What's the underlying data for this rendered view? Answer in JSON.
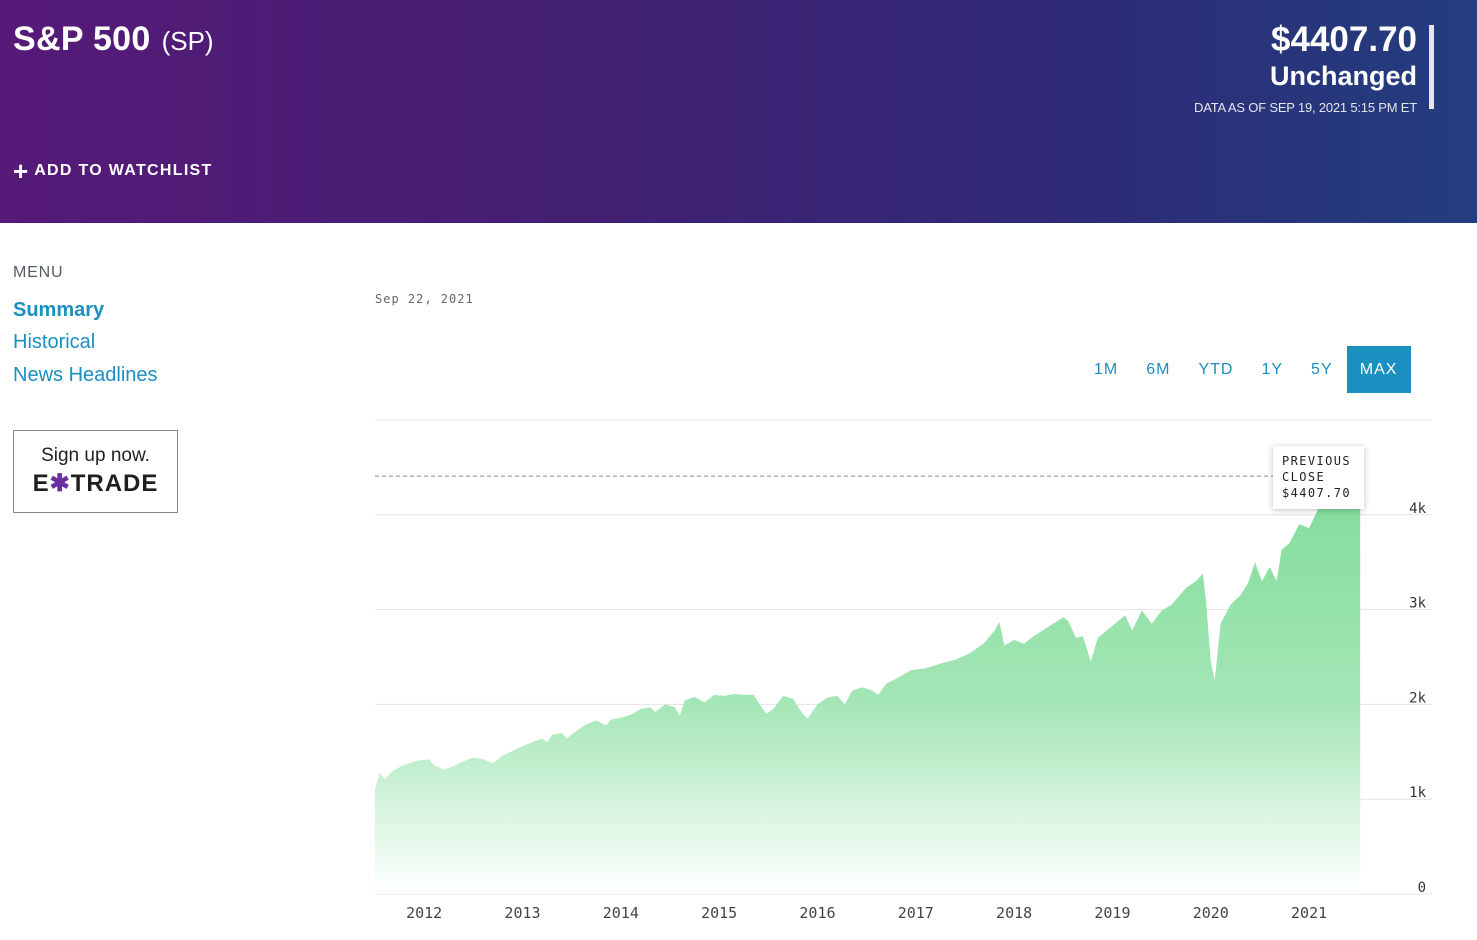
{
  "header": {
    "title": "S&P 500",
    "ticker": "(SP)",
    "price": "$4407.70",
    "change": "Unchanged",
    "as_of": "DATA AS OF SEP 19, 2021 5:15 PM ET",
    "watchlist_label": "ADD TO WATCHLIST"
  },
  "menu": {
    "label": "MENU",
    "items": [
      {
        "label": "Summary"
      },
      {
        "label": "Historical"
      },
      {
        "label": "News Headlines"
      }
    ]
  },
  "ad": {
    "line1": "Sign up now.",
    "brand_left": "E",
    "brand_x": "✱",
    "brand_right": "TRADE"
  },
  "chart_header": {
    "date": "Sep 22, 2021"
  },
  "ranges": [
    {
      "label": "1M",
      "active": false
    },
    {
      "label": "6M",
      "active": false
    },
    {
      "label": "YTD",
      "active": false
    },
    {
      "label": "1Y",
      "active": false
    },
    {
      "label": "5Y",
      "active": false
    },
    {
      "label": "MAX",
      "active": true
    }
  ],
  "tooltip": {
    "line1": "PREVIOUS",
    "line2": "CLOSE",
    "line3": "$4407.70"
  },
  "colors": {
    "accent": "#1a8fc0",
    "area_top": "#7fdc98",
    "area_bottom": "#ffffff"
  },
  "chart_data": {
    "type": "area",
    "title": "",
    "xlabel": "",
    "ylabel": "",
    "x_ticks": [
      "2012",
      "2013",
      "2014",
      "2015",
      "2016",
      "2017",
      "2018",
      "2019",
      "2020",
      "2021"
    ],
    "y_ticks": [
      {
        "value": 0,
        "label": "0"
      },
      {
        "value": 1000,
        "label": "1k"
      },
      {
        "value": 2000,
        "label": "2k"
      },
      {
        "value": 3000,
        "label": "3k"
      },
      {
        "value": 4000,
        "label": "4k"
      }
    ],
    "xlim": [
      2011.7,
      2022.45
    ],
    "ylim": [
      0,
      5000
    ],
    "grid": true,
    "reference_line": {
      "label": "PREVIOUS CLOSE",
      "value": 4407.7
    },
    "series": [
      {
        "values": [
          [
            2011.7,
            1100
          ],
          [
            2011.75,
            1280
          ],
          [
            2011.8,
            1210
          ],
          [
            2011.87,
            1290
          ],
          [
            2011.95,
            1340
          ],
          [
            2012.05,
            1380
          ],
          [
            2012.15,
            1410
          ],
          [
            2012.25,
            1420
          ],
          [
            2012.3,
            1360
          ],
          [
            2012.4,
            1310
          ],
          [
            2012.5,
            1350
          ],
          [
            2012.6,
            1400
          ],
          [
            2012.7,
            1440
          ],
          [
            2012.8,
            1420
          ],
          [
            2012.9,
            1380
          ],
          [
            2013.0,
            1460
          ],
          [
            2013.1,
            1510
          ],
          [
            2013.2,
            1560
          ],
          [
            2013.3,
            1600
          ],
          [
            2013.4,
            1640
          ],
          [
            2013.45,
            1600
          ],
          [
            2013.5,
            1680
          ],
          [
            2013.6,
            1700
          ],
          [
            2013.65,
            1640
          ],
          [
            2013.75,
            1720
          ],
          [
            2013.85,
            1790
          ],
          [
            2013.95,
            1830
          ],
          [
            2014.05,
            1780
          ],
          [
            2014.1,
            1840
          ],
          [
            2014.2,
            1860
          ],
          [
            2014.3,
            1890
          ],
          [
            2014.4,
            1950
          ],
          [
            2014.5,
            1970
          ],
          [
            2014.55,
            1920
          ],
          [
            2014.65,
            2000
          ],
          [
            2014.75,
            1970
          ],
          [
            2014.8,
            1880
          ],
          [
            2014.85,
            2040
          ],
          [
            2014.95,
            2080
          ],
          [
            2015.05,
            2020
          ],
          [
            2015.15,
            2100
          ],
          [
            2015.25,
            2090
          ],
          [
            2015.35,
            2110
          ],
          [
            2015.45,
            2100
          ],
          [
            2015.55,
            2100
          ],
          [
            2015.62,
            1990
          ],
          [
            2015.68,
            1900
          ],
          [
            2015.75,
            1950
          ],
          [
            2015.85,
            2090
          ],
          [
            2015.95,
            2060
          ],
          [
            2016.05,
            1900
          ],
          [
            2016.1,
            1850
          ],
          [
            2016.2,
            2000
          ],
          [
            2016.3,
            2070
          ],
          [
            2016.4,
            2090
          ],
          [
            2016.48,
            2000
          ],
          [
            2016.55,
            2140
          ],
          [
            2016.65,
            2180
          ],
          [
            2016.75,
            2150
          ],
          [
            2016.82,
            2100
          ],
          [
            2016.9,
            2220
          ],
          [
            2017.0,
            2270
          ],
          [
            2017.15,
            2360
          ],
          [
            2017.3,
            2380
          ],
          [
            2017.45,
            2430
          ],
          [
            2017.6,
            2470
          ],
          [
            2017.75,
            2540
          ],
          [
            2017.9,
            2650
          ],
          [
            2018.0,
            2780
          ],
          [
            2018.05,
            2870
          ],
          [
            2018.1,
            2620
          ],
          [
            2018.2,
            2680
          ],
          [
            2018.3,
            2640
          ],
          [
            2018.4,
            2720
          ],
          [
            2018.55,
            2820
          ],
          [
            2018.7,
            2920
          ],
          [
            2018.75,
            2880
          ],
          [
            2018.83,
            2700
          ],
          [
            2018.9,
            2720
          ],
          [
            2018.98,
            2450
          ],
          [
            2019.05,
            2700
          ],
          [
            2019.2,
            2830
          ],
          [
            2019.33,
            2940
          ],
          [
            2019.4,
            2780
          ],
          [
            2019.5,
            2990
          ],
          [
            2019.6,
            2850
          ],
          [
            2019.7,
            2990
          ],
          [
            2019.8,
            3050
          ],
          [
            2019.95,
            3230
          ],
          [
            2020.05,
            3300
          ],
          [
            2020.12,
            3380
          ],
          [
            2020.15,
            3100
          ],
          [
            2020.2,
            2450
          ],
          [
            2020.24,
            2250
          ],
          [
            2020.3,
            2850
          ],
          [
            2020.4,
            3050
          ],
          [
            2020.5,
            3150
          ],
          [
            2020.58,
            3280
          ],
          [
            2020.65,
            3500
          ],
          [
            2020.72,
            3300
          ],
          [
            2020.8,
            3450
          ],
          [
            2020.87,
            3300
          ],
          [
            2020.92,
            3630
          ],
          [
            2021.0,
            3700
          ],
          [
            2021.1,
            3900
          ],
          [
            2021.2,
            3860
          ],
          [
            2021.3,
            4080
          ],
          [
            2021.4,
            4190
          ],
          [
            2021.5,
            4250
          ],
          [
            2021.6,
            4400
          ],
          [
            2021.7,
            4480
          ],
          [
            2021.72,
            4407.7
          ]
        ]
      }
    ]
  }
}
